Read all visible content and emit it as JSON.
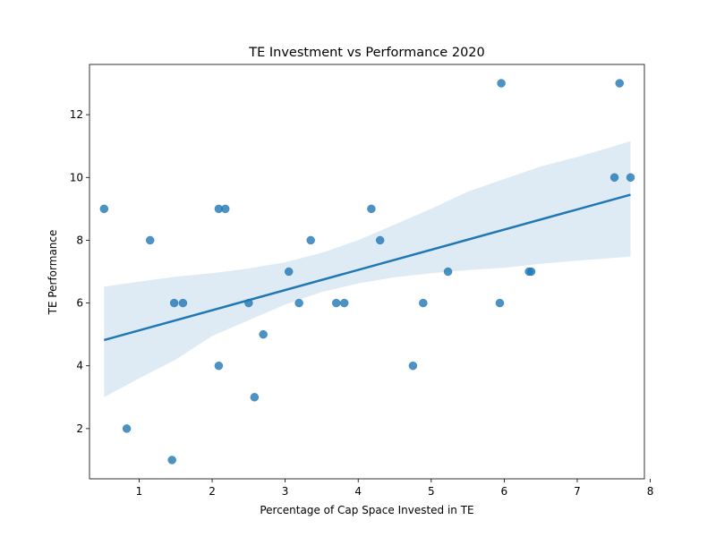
{
  "chart_data": {
    "type": "scatter",
    "title": "TE Investment vs Performance 2020",
    "xlabel": "Percentage of Cap Space Invested in TE",
    "ylabel": "TE Performance",
    "xlim": [
      0.32,
      7.92
    ],
    "ylim": [
      0.4,
      13.6
    ],
    "xticks": [
      1,
      2,
      3,
      4,
      5,
      6,
      7,
      8
    ],
    "yticks": [
      2,
      4,
      6,
      8,
      10,
      12
    ],
    "grid": false,
    "points": [
      {
        "x": 0.52,
        "y": 9
      },
      {
        "x": 0.83,
        "y": 2
      },
      {
        "x": 1.15,
        "y": 8
      },
      {
        "x": 1.45,
        "y": 1
      },
      {
        "x": 1.48,
        "y": 6
      },
      {
        "x": 1.6,
        "y": 6
      },
      {
        "x": 2.09,
        "y": 9
      },
      {
        "x": 2.09,
        "y": 4
      },
      {
        "x": 2.18,
        "y": 9
      },
      {
        "x": 2.5,
        "y": 6
      },
      {
        "x": 2.58,
        "y": 3
      },
      {
        "x": 2.7,
        "y": 5
      },
      {
        "x": 3.05,
        "y": 7
      },
      {
        "x": 3.19,
        "y": 6
      },
      {
        "x": 3.35,
        "y": 8
      },
      {
        "x": 3.7,
        "y": 6
      },
      {
        "x": 3.81,
        "y": 6
      },
      {
        "x": 4.18,
        "y": 9
      },
      {
        "x": 4.3,
        "y": 8
      },
      {
        "x": 4.75,
        "y": 4
      },
      {
        "x": 4.89,
        "y": 6
      },
      {
        "x": 5.23,
        "y": 7
      },
      {
        "x": 5.94,
        "y": 6
      },
      {
        "x": 5.96,
        "y": 13
      },
      {
        "x": 6.34,
        "y": 7
      },
      {
        "x": 6.37,
        "y": 7
      },
      {
        "x": 7.51,
        "y": 10
      },
      {
        "x": 7.58,
        "y": 13
      },
      {
        "x": 7.73,
        "y": 10
      }
    ],
    "regression": {
      "start": {
        "x": 0.52,
        "y": 4.82
      },
      "end": {
        "x": 7.73,
        "y": 9.45
      }
    },
    "confidence_band": [
      {
        "x": 0.52,
        "lower": 3.0,
        "upper": 6.52
      },
      {
        "x": 1.0,
        "lower": 3.6,
        "upper": 6.68
      },
      {
        "x": 1.5,
        "lower": 4.2,
        "upper": 6.84
      },
      {
        "x": 2.0,
        "lower": 4.95,
        "upper": 6.95
      },
      {
        "x": 2.5,
        "lower": 5.45,
        "upper": 7.1
      },
      {
        "x": 3.0,
        "lower": 5.95,
        "upper": 7.3
      },
      {
        "x": 3.5,
        "lower": 6.35,
        "upper": 7.6
      },
      {
        "x": 4.0,
        "lower": 6.62,
        "upper": 8.0
      },
      {
        "x": 4.5,
        "lower": 6.82,
        "upper": 8.5
      },
      {
        "x": 5.0,
        "lower": 6.95,
        "upper": 9.0
      },
      {
        "x": 5.5,
        "lower": 7.05,
        "upper": 9.55
      },
      {
        "x": 6.0,
        "lower": 7.12,
        "upper": 9.95
      },
      {
        "x": 6.5,
        "lower": 7.25,
        "upper": 10.35
      },
      {
        "x": 7.0,
        "lower": 7.35,
        "upper": 10.65
      },
      {
        "x": 7.73,
        "lower": 7.48,
        "upper": 11.15
      }
    ],
    "colors": {
      "points": "#1f77b4",
      "line": "#1f77b4",
      "band": "#1f77b4"
    }
  }
}
